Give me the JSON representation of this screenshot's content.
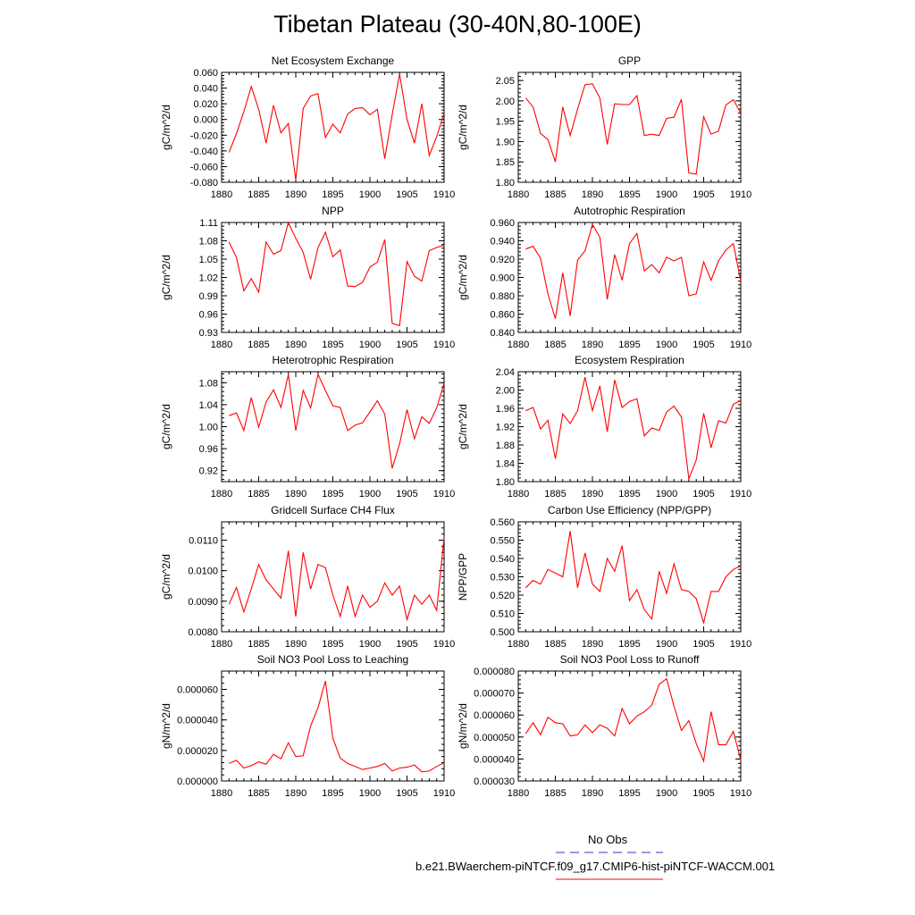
{
  "title": "Tibetan Plateau (30-40N,80-100E)",
  "colors": {
    "series": "#ff0000",
    "obs": "#3333cc",
    "axis": "#000000"
  },
  "legend": {
    "obs_label": "No Obs",
    "model_label": "b.e21.BWaerchem-piNTCF.f09_g17.CMIP6-hist-piNTCF-WACCM.001"
  },
  "chart_data": [
    {
      "type": "line",
      "title": "Net Ecosystem Exchange",
      "ylabel": "gC/m^2/d",
      "xlabel": "",
      "xlim": [
        1880,
        1910
      ],
      "ylim": [
        -0.08,
        0.06
      ],
      "yticks": [
        -0.08,
        -0.06,
        -0.04,
        -0.02,
        0.0,
        0.02,
        0.04,
        0.06
      ],
      "yticklabels": [
        "-0.080",
        "-0.060",
        "-0.040",
        "-0.020",
        "0.000",
        "0.020",
        "0.040",
        "0.060"
      ],
      "xticks": [
        1880,
        1885,
        1890,
        1895,
        1900,
        1905,
        1910
      ],
      "xticklabels": [
        "1880",
        "1885",
        "1890",
        "1895",
        "1900",
        "1905",
        "1910"
      ],
      "x_start": 1881,
      "values": [
        -0.042,
        -0.018,
        0.01,
        0.042,
        0.013,
        -0.03,
        0.018,
        -0.017,
        -0.005,
        -0.077,
        0.014,
        0.03,
        0.033,
        -0.023,
        -0.006,
        -0.017,
        0.007,
        0.014,
        0.015,
        0.006,
        0.013,
        -0.05,
        0.006,
        0.058,
        0.0,
        -0.03,
        0.02,
        -0.046,
        -0.022,
        0.008
      ]
    },
    {
      "type": "line",
      "title": "GPP",
      "ylabel": "gC/m^2/d",
      "xlabel": "",
      "xlim": [
        1880,
        1910
      ],
      "ylim": [
        1.8,
        2.07
      ],
      "yticks": [
        1.8,
        1.85,
        1.9,
        1.95,
        2.0,
        2.05
      ],
      "yticklabels": [
        "1.80",
        "1.85",
        "1.90",
        "1.95",
        "2.00",
        "2.05"
      ],
      "xticks": [
        1880,
        1885,
        1890,
        1895,
        1900,
        1905,
        1910
      ],
      "xticklabels": [
        "1880",
        "1885",
        "1890",
        "1895",
        "1900",
        "1905",
        "1910"
      ],
      "x_start": 1881,
      "values": [
        2.007,
        1.985,
        1.92,
        1.905,
        1.85,
        1.985,
        1.915,
        1.98,
        2.04,
        2.042,
        2.007,
        1.893,
        1.993,
        1.991,
        1.991,
        2.013,
        1.915,
        1.918,
        1.915,
        1.957,
        1.96,
        2.004,
        1.823,
        1.82,
        1.961,
        1.918,
        1.926,
        1.99,
        2.003,
        1.97
      ]
    },
    {
      "type": "line",
      "title": "NPP",
      "ylabel": "gC/m^2/d",
      "xlabel": "",
      "xlim": [
        1880,
        1910
      ],
      "ylim": [
        0.93,
        1.11
      ],
      "yticks": [
        0.93,
        0.96,
        0.99,
        1.02,
        1.05,
        1.08,
        1.11
      ],
      "yticklabels": [
        "0.93",
        "0.96",
        "0.99",
        "1.02",
        "1.05",
        "1.08",
        "1.11"
      ],
      "xticks": [
        1880,
        1885,
        1890,
        1895,
        1900,
        1905,
        1910
      ],
      "xticklabels": [
        "1880",
        "1885",
        "1890",
        "1895",
        "1900",
        "1905",
        "1910"
      ],
      "x_start": 1881,
      "values": [
        1.078,
        1.053,
        0.998,
        1.018,
        0.996,
        1.078,
        1.058,
        1.064,
        1.11,
        1.084,
        1.061,
        1.017,
        1.069,
        1.094,
        1.054,
        1.065,
        1.006,
        1.005,
        1.012,
        1.037,
        1.045,
        1.082,
        0.945,
        0.941,
        1.046,
        1.022,
        1.014,
        1.064,
        1.069,
        1.073
      ]
    },
    {
      "type": "line",
      "title": "Autotrophic Respiration",
      "ylabel": "gC/m^2/d",
      "xlabel": "",
      "xlim": [
        1880,
        1910
      ],
      "ylim": [
        0.84,
        0.96
      ],
      "yticks": [
        0.84,
        0.86,
        0.88,
        0.9,
        0.92,
        0.94,
        0.96
      ],
      "yticklabels": [
        "0.840",
        "0.860",
        "0.880",
        "0.900",
        "0.920",
        "0.940",
        "0.960"
      ],
      "xticks": [
        1880,
        1885,
        1890,
        1895,
        1900,
        1905,
        1910
      ],
      "xticklabels": [
        "1880",
        "1885",
        "1890",
        "1895",
        "1900",
        "1905",
        "1910"
      ],
      "x_start": 1881,
      "values": [
        0.931,
        0.934,
        0.921,
        0.882,
        0.855,
        0.905,
        0.858,
        0.919,
        0.929,
        0.958,
        0.944,
        0.876,
        0.925,
        0.897,
        0.937,
        0.948,
        0.907,
        0.914,
        0.905,
        0.922,
        0.918,
        0.922,
        0.88,
        0.882,
        0.917,
        0.897,
        0.918,
        0.93,
        0.937,
        0.896
      ]
    },
    {
      "type": "line",
      "title": "Heterotrophic Respiration",
      "ylabel": "gC/m^2/d",
      "xlabel": "",
      "xlim": [
        1880,
        1910
      ],
      "ylim": [
        0.9,
        1.1
      ],
      "yticks": [
        0.92,
        0.96,
        1.0,
        1.04,
        1.08
      ],
      "yticklabels": [
        "0.92",
        "0.96",
        "1.00",
        "1.04",
        "1.08"
      ],
      "xticks": [
        1880,
        1885,
        1890,
        1895,
        1900,
        1905,
        1910
      ],
      "xticklabels": [
        "1880",
        "1885",
        "1890",
        "1895",
        "1900",
        "1905",
        "1910"
      ],
      "x_start": 1881,
      "values": [
        1.02,
        1.025,
        0.993,
        1.053,
        0.999,
        1.045,
        1.067,
        1.035,
        1.095,
        0.993,
        1.066,
        1.034,
        1.095,
        1.066,
        1.038,
        1.035,
        0.993,
        1.003,
        1.007,
        1.027,
        1.047,
        1.023,
        0.924,
        0.969,
        1.031,
        0.978,
        1.018,
        1.006,
        1.034,
        1.079
      ]
    },
    {
      "type": "line",
      "title": "Ecosystem Respiration",
      "ylabel": "gC/m^2/d",
      "xlabel": "",
      "xlim": [
        1880,
        1910
      ],
      "ylim": [
        1.8,
        2.04
      ],
      "yticks": [
        1.8,
        1.84,
        1.88,
        1.92,
        1.96,
        2.0,
        2.04
      ],
      "yticklabels": [
        "1.80",
        "1.84",
        "1.88",
        "1.92",
        "1.96",
        "2.00",
        "2.04"
      ],
      "xticks": [
        1880,
        1885,
        1890,
        1895,
        1900,
        1905,
        1910
      ],
      "xticklabels": [
        "1880",
        "1885",
        "1890",
        "1895",
        "1900",
        "1905",
        "1910"
      ],
      "x_start": 1881,
      "values": [
        1.955,
        1.962,
        1.915,
        1.934,
        1.85,
        1.948,
        1.927,
        1.955,
        2.028,
        1.955,
        2.009,
        1.909,
        2.022,
        1.962,
        1.975,
        1.981,
        1.9,
        1.917,
        1.912,
        1.952,
        1.965,
        1.941,
        1.806,
        1.847,
        1.949,
        1.874,
        1.933,
        1.928,
        1.969,
        1.977
      ]
    },
    {
      "type": "line",
      "title": "Gridcell Surface CH4 Flux",
      "ylabel": "gC/m^2/d",
      "xlabel": "",
      "xlim": [
        1880,
        1910
      ],
      "ylim": [
        0.008,
        0.0116
      ],
      "yticks": [
        0.008,
        0.009,
        0.01,
        0.011
      ],
      "yticklabels": [
        "0.0080",
        "0.0090",
        "0.0100",
        "0.0110"
      ],
      "xticks": [
        1880,
        1885,
        1890,
        1895,
        1900,
        1905,
        1910
      ],
      "xticklabels": [
        "1880",
        "1885",
        "1890",
        "1895",
        "1900",
        "1905",
        "1910"
      ],
      "x_start": 1881,
      "values": [
        0.0089,
        0.00945,
        0.00865,
        0.0094,
        0.0102,
        0.0097,
        0.0094,
        0.0091,
        0.01065,
        0.0085,
        0.0106,
        0.0094,
        0.0102,
        0.0101,
        0.0092,
        0.0085,
        0.0095,
        0.0085,
        0.0092,
        0.0088,
        0.009,
        0.0096,
        0.0092,
        0.0095,
        0.0084,
        0.0092,
        0.0089,
        0.0092,
        0.0087,
        0.0111
      ]
    },
    {
      "type": "line",
      "title": "Carbon Use Efficiency (NPP/GPP)",
      "ylabel": "NPP/GPP",
      "xlabel": "",
      "xlim": [
        1880,
        1910
      ],
      "ylim": [
        0.5,
        0.56
      ],
      "yticks": [
        0.5,
        0.51,
        0.52,
        0.53,
        0.54,
        0.55,
        0.56
      ],
      "yticklabels": [
        "0.500",
        "0.510",
        "0.520",
        "0.530",
        "0.540",
        "0.550",
        "0.560"
      ],
      "xticks": [
        1880,
        1885,
        1890,
        1895,
        1900,
        1905,
        1910
      ],
      "xticklabels": [
        "1880",
        "1885",
        "1890",
        "1895",
        "1900",
        "1905",
        "1910"
      ],
      "x_start": 1881,
      "values": [
        0.524,
        0.528,
        0.526,
        0.534,
        0.532,
        0.53,
        0.555,
        0.524,
        0.543,
        0.526,
        0.522,
        0.54,
        0.533,
        0.547,
        0.517,
        0.523,
        0.512,
        0.507,
        0.533,
        0.521,
        0.537,
        0.523,
        0.522,
        0.518,
        0.505,
        0.522,
        0.522,
        0.53,
        0.534,
        0.536
      ]
    },
    {
      "type": "line",
      "title": "Soil NO3 Pool Loss to Leaching",
      "ylabel": "gN/m^2/d",
      "xlabel": "",
      "xlim": [
        1880,
        1910
      ],
      "ylim": [
        0.0,
        7.2e-05
      ],
      "yticks": [
        0.0,
        2e-05,
        4e-05,
        6e-05
      ],
      "yticklabels": [
        "0.000000",
        "0.000020",
        "0.000040",
        "0.000060"
      ],
      "xticks": [
        1880,
        1885,
        1890,
        1895,
        1900,
        1905,
        1910
      ],
      "xticklabels": [
        "1880",
        "1885",
        "1890",
        "1895",
        "1900",
        "1905",
        "1910"
      ],
      "x_start": 1881,
      "values": [
        1.15e-05,
        1.35e-05,
        8.5e-06,
        1e-05,
        1.25e-05,
        1.1e-05,
        1.75e-05,
        1.45e-05,
        2.5e-05,
        1.6e-05,
        1.65e-05,
        3.6e-05,
        4.8e-05,
        6.55e-05,
        2.8e-05,
        1.5e-05,
        1.15e-05,
        9.5e-06,
        7.5e-06,
        8.5e-06,
        9.5e-06,
        1.15e-05,
        6.5e-06,
        8.5e-06,
        9e-06,
        1.05e-05,
        6e-06,
        6.5e-06,
        9.5e-06,
        1.2e-05
      ]
    },
    {
      "type": "line",
      "title": "Soil NO3 Pool Loss to Runoff",
      "ylabel": "gN/m^2/d",
      "xlabel": "",
      "xlim": [
        1880,
        1910
      ],
      "ylim": [
        3e-05,
        8e-05
      ],
      "yticks": [
        3e-05,
        4e-05,
        5e-05,
        6e-05,
        7e-05,
        8e-05
      ],
      "yticklabels": [
        "0.000030",
        "0.000040",
        "0.000050",
        "0.000060",
        "0.000070",
        "0.000080"
      ],
      "xticks": [
        1880,
        1885,
        1890,
        1895,
        1900,
        1905,
        1910
      ],
      "xticklabels": [
        "1880",
        "1885",
        "1890",
        "1895",
        "1900",
        "1905",
        "1910"
      ],
      "x_start": 1881,
      "values": [
        5.15e-05,
        5.65e-05,
        5.1e-05,
        5.9e-05,
        5.65e-05,
        5.6e-05,
        5.05e-05,
        5.1e-05,
        5.55e-05,
        5.2e-05,
        5.55e-05,
        5.4e-05,
        5.05e-05,
        6.3e-05,
        5.6e-05,
        5.95e-05,
        6.15e-05,
        6.45e-05,
        7.4e-05,
        7.65e-05,
        6.4e-05,
        5.3e-05,
        5.75e-05,
        4.7e-05,
        3.9e-05,
        6.15e-05,
        4.65e-05,
        4.65e-05,
        5.25e-05,
        3.95e-05
      ]
    }
  ]
}
